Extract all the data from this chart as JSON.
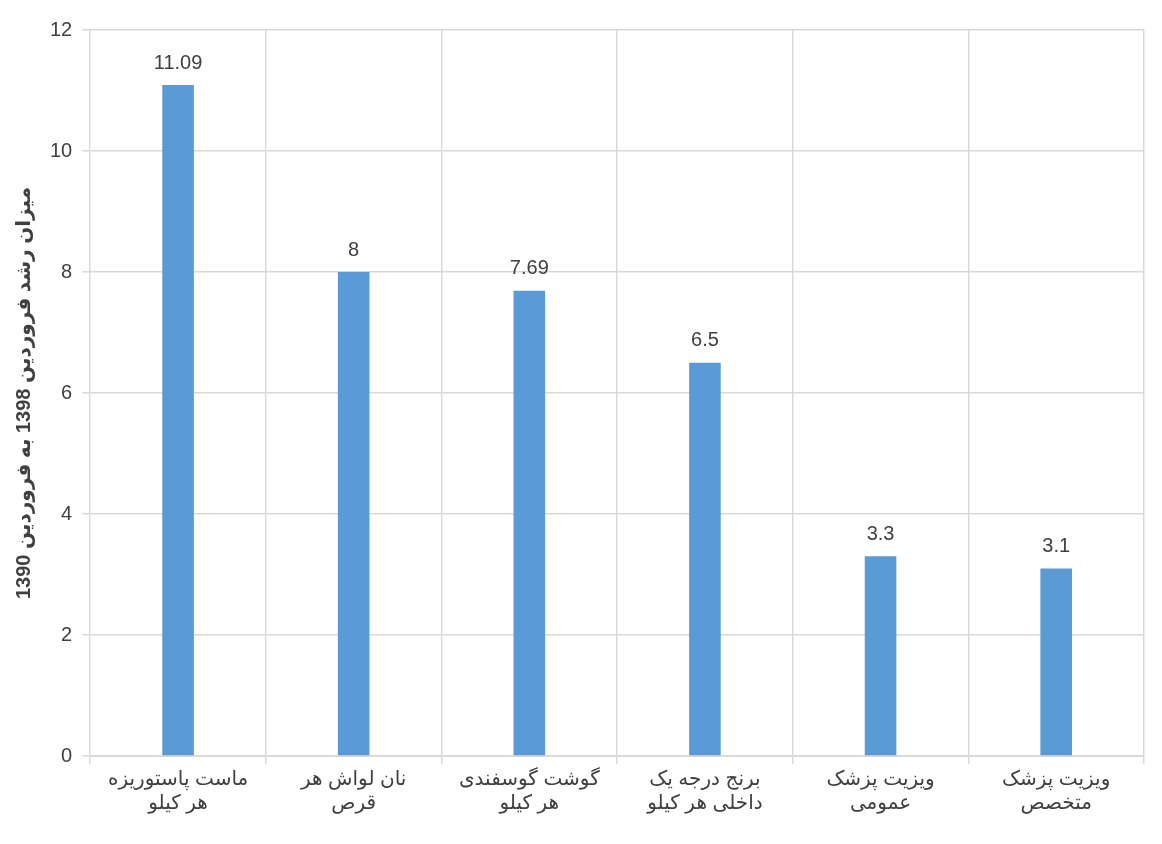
{
  "chart_data": {
    "type": "bar",
    "ylabel": "میزان رشد فروردین 1398 به فروردین 1390",
    "categories": [
      "ماست پاستوریزه هر کیلو",
      "نان لواش هر قرص",
      "گوشت گوسفندی هر کیلو",
      "برنج درجه یک داخلی هر کیلو",
      "ویزیت پزشک عمومی",
      "ویزیت پزشک متخصص"
    ],
    "values": [
      11.09,
      8,
      7.69,
      6.5,
      3.3,
      3.1
    ],
    "color": "#5b9bd5",
    "ylim": [
      0,
      12
    ],
    "yticks": [
      0,
      2,
      4,
      6,
      8,
      10,
      12
    ],
    "grid": true,
    "data_labels": true
  }
}
